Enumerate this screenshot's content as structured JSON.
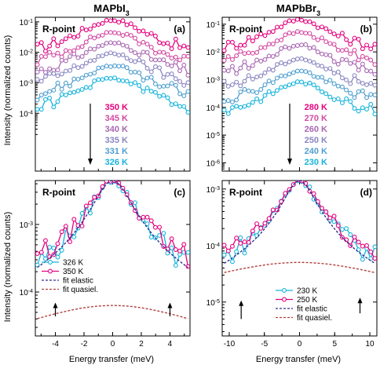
{
  "figure": {
    "col_titles": [
      {
        "main": "MAPbI",
        "sub": "3"
      },
      {
        "main": "MAPbBr",
        "sub": "3"
      }
    ],
    "ylabel": "Intensity (normalized counts)",
    "xlabel": "Energy transfer (meV)"
  },
  "chart_data": [
    {
      "id": "a",
      "type": "line",
      "panel_label": "(a)",
      "point_label": "R-point",
      "xlim": [
        -5.4,
        5.4
      ],
      "ylim_log": [
        -5.9,
        -0.85
      ],
      "yscale": "log",
      "xticks": [
        -4,
        -2,
        0,
        2,
        4
      ],
      "xtick_labels": [],
      "yticks": [
        -1,
        -2,
        -3,
        -4
      ],
      "ytick_labels": [
        {
          "base": "10",
          "exp": "-1"
        },
        {
          "base": "10",
          "exp": "-2"
        },
        {
          "base": "10",
          "exp": "-3"
        },
        {
          "base": "10",
          "exp": "-4"
        }
      ],
      "legend": {
        "type": "temperature",
        "anchor": "mid-left"
      },
      "series": [
        {
          "name": "350 K",
          "color": "#e5007e",
          "peak_log": -0.95,
          "hw": 1.85,
          "bg_log": -3.1
        },
        {
          "name": "345 K",
          "color": "#d34aa3",
          "peak_log": -1.35,
          "hw": 1.85,
          "bg_log": -3.45
        },
        {
          "name": "340 K",
          "color": "#a868b3",
          "peak_log": -1.7,
          "hw": 1.85,
          "bg_log": -3.8
        },
        {
          "name": "335 K",
          "color": "#8a86c2",
          "peak_log": -2.05,
          "hw": 1.85,
          "bg_log": -4.15
        },
        {
          "name": "331 K",
          "color": "#4f9fd0",
          "peak_log": -2.45,
          "hw": 1.85,
          "bg_log": -4.55
        },
        {
          "name": "326 K",
          "color": "#16b4dc",
          "peak_log": -2.85,
          "hw": 1.85,
          "bg_log": -5.2
        }
      ]
    },
    {
      "id": "b",
      "type": "line",
      "panel_label": "(b)",
      "point_label": "R-point",
      "xlim": [
        -11,
        11
      ],
      "ylim_log": [
        -6.3,
        -0.75
      ],
      "yscale": "log",
      "xticks": [
        -10,
        -5,
        0,
        5,
        10
      ],
      "xtick_labels": [],
      "yticks": [
        -1,
        -2,
        -3,
        -4,
        -5,
        -6
      ],
      "ytick_labels": [
        {
          "base": "10",
          "exp": "-1"
        },
        {
          "base": "10",
          "exp": "-2"
        },
        {
          "base": "10",
          "exp": "-3"
        },
        {
          "base": "10",
          "exp": "-4"
        },
        {
          "base": "10",
          "exp": "-5"
        },
        {
          "base": "10",
          "exp": "-6"
        }
      ],
      "legend": {
        "type": "temperature",
        "anchor": "mid-center"
      },
      "series": [
        {
          "name": "280 K",
          "color": "#e5007e",
          "peak_log": -0.85,
          "hw": 3.2,
          "bg_log": -2.4
        },
        {
          "name": "270 K",
          "color": "#d34aa3",
          "peak_log": -1.3,
          "hw": 3.2,
          "bg_log": -2.9
        },
        {
          "name": "260 K",
          "color": "#a868b3",
          "peak_log": -1.75,
          "hw": 3.2,
          "bg_log": -3.4
        },
        {
          "name": "250 K",
          "color": "#8a86c2",
          "peak_log": -2.25,
          "hw": 3.2,
          "bg_log": -3.9
        },
        {
          "name": "240 K",
          "color": "#4f9fd0",
          "peak_log": -2.7,
          "hw": 3.2,
          "bg_log": -4.4
        },
        {
          "name": "230 K",
          "color": "#16b4dc",
          "peak_log": -3.1,
          "hw": 3.2,
          "bg_log": -4.9
        }
      ]
    },
    {
      "id": "c",
      "type": "line",
      "panel_label": "(c)",
      "point_label": "R-point",
      "xlim": [
        -5.4,
        5.4
      ],
      "ylim_log": [
        -4.65,
        -2.35
      ],
      "yscale": "log",
      "xticks": [
        -4,
        -2,
        0,
        2,
        4
      ],
      "xtick_labels": [
        "-4",
        "-2",
        "0",
        "2",
        "4"
      ],
      "yticks": [
        -3,
        -4
      ],
      "ytick_labels": [
        {
          "base": "10",
          "exp": "-3"
        },
        {
          "base": "10",
          "exp": "-4"
        }
      ],
      "legend": {
        "type": "box",
        "anchor": "bottom-left"
      },
      "series": [
        {
          "name": "326 K",
          "color": "#16b4dc",
          "style": "markers",
          "peak_log": -2.35,
          "hw": 1.25,
          "bg_log": -4.35
        },
        {
          "name": "350 K",
          "color": "#e5007e",
          "style": "markers",
          "peak_log": -2.35,
          "hw": 1.25,
          "bg_log": -4.05
        },
        {
          "name": "fit elastic",
          "color": "#2e3191",
          "style": "dashed",
          "peak_log": -2.35,
          "hw": 1.2,
          "bg_log": -5.0
        },
        {
          "name": "fit quasiel.",
          "color": "#b0413e",
          "style": "dashed",
          "peak_log": -4.2,
          "hw": 7.0,
          "bg_log": -7.0
        }
      ],
      "arrows": [
        {
          "x": -4.0,
          "from_log": -4.36,
          "to_log": -4.18
        },
        {
          "x": 4.0,
          "from_log": -4.36,
          "to_log": -4.18
        }
      ]
    },
    {
      "id": "d",
      "type": "line",
      "panel_label": "(d)",
      "point_label": "R-point",
      "xlim": [
        -11,
        11
      ],
      "ylim_log": [
        -5.6,
        -2.85
      ],
      "yscale": "log",
      "xticks": [
        -10,
        -5,
        0,
        5,
        10
      ],
      "xtick_labels": [
        "-10",
        "-5",
        "0",
        "5",
        "10"
      ],
      "yticks": [
        -3,
        -4,
        -5
      ],
      "ytick_labels": [
        {
          "base": "10",
          "exp": "-3"
        },
        {
          "base": "10",
          "exp": "-4"
        },
        {
          "base": "10",
          "exp": "-5"
        }
      ],
      "legend": {
        "type": "box",
        "anchor": "bottom-center"
      },
      "series": [
        {
          "name": "230 K",
          "color": "#16b4dc",
          "style": "markers",
          "peak_log": -2.85,
          "hw": 2.2,
          "bg_log": -5.25
        },
        {
          "name": "250 K",
          "color": "#e5007e",
          "style": "markers",
          "peak_log": -2.85,
          "hw": 2.2,
          "bg_log": -4.8
        },
        {
          "name": "fit elastic",
          "color": "#2e3191",
          "style": "dashed",
          "peak_log": -2.85,
          "hw": 2.0,
          "bg_log": -6.0
        },
        {
          "name": "fit quasiel.",
          "color": "#b0413e",
          "style": "dashed",
          "peak_log": -4.3,
          "hw": 15.0,
          "bg_log": -7.0
        }
      ],
      "arrows": [
        {
          "x": -8.3,
          "from_log": -5.3,
          "to_log": -5.0
        },
        {
          "x": 8.6,
          "from_log": -5.2,
          "to_log": -4.95
        }
      ]
    }
  ]
}
